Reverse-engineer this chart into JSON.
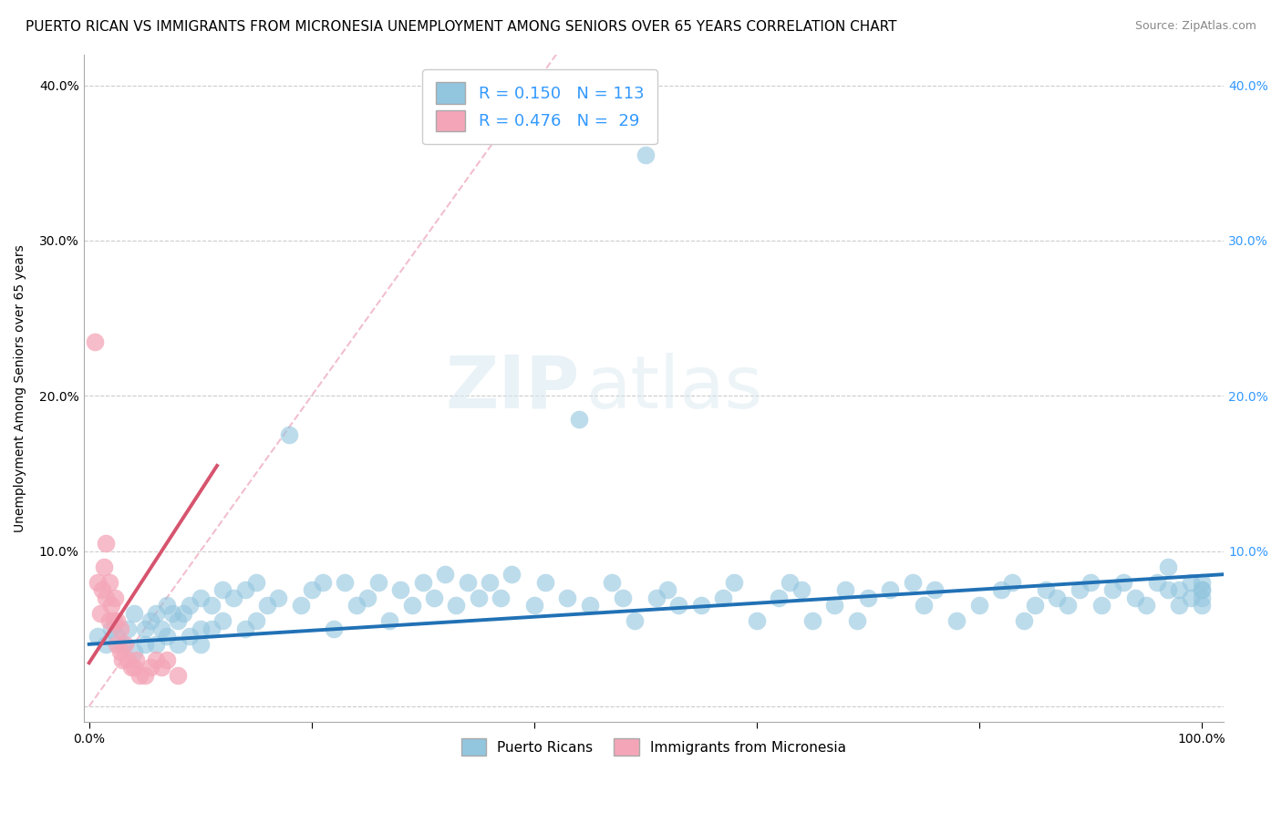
{
  "title": "PUERTO RICAN VS IMMIGRANTS FROM MICRONESIA UNEMPLOYMENT AMONG SENIORS OVER 65 YEARS CORRELATION CHART",
  "source": "Source: ZipAtlas.com",
  "ylabel": "Unemployment Among Seniors over 65 years",
  "xlabel": "",
  "xlim": [
    -0.005,
    1.02
  ],
  "ylim": [
    -0.01,
    0.42
  ],
  "xtick_vals": [
    0.0,
    0.2,
    0.4,
    0.6,
    0.8,
    1.0
  ],
  "xticklabels": [
    "0.0%",
    "",
    "",
    "",
    "",
    "100.0%"
  ],
  "ytick_vals": [
    0.0,
    0.1,
    0.2,
    0.3,
    0.4
  ],
  "yticklabels_left": [
    "",
    "10.0%",
    "20.0%",
    "30.0%",
    "40.0%"
  ],
  "yticklabels_right": [
    "",
    "10.0%",
    "20.0%",
    "30.0%",
    "40.0%"
  ],
  "blue_R": 0.15,
  "blue_N": 113,
  "pink_R": 0.476,
  "pink_N": 29,
  "blue_color": "#92c5de",
  "pink_color": "#f4a6b8",
  "blue_line_color": "#2171b5",
  "pink_line_color": "#d6546e",
  "ref_line_color": "#f0b8c8",
  "legend_blue_label": "Puerto Ricans",
  "legend_pink_label": "Immigrants from Micronesia",
  "watermark_zip": "ZIP",
  "watermark_atlas": "atlas",
  "title_fontsize": 11,
  "axis_label_fontsize": 10,
  "tick_fontsize": 10,
  "blue_trend_x0": 0.0,
  "blue_trend_x1": 1.02,
  "blue_trend_y0": 0.04,
  "blue_trend_y1": 0.085,
  "pink_trend_x0": 0.0,
  "pink_trend_x1": 0.115,
  "pink_trend_y0": 0.028,
  "pink_trend_y1": 0.155,
  "ref_line_x0": 0.0,
  "ref_line_x1": 0.42,
  "ref_line_y0": 0.0,
  "ref_line_y1": 0.42,
  "blue_x": [
    0.008,
    0.015,
    0.02,
    0.025,
    0.03,
    0.035,
    0.04,
    0.04,
    0.05,
    0.05,
    0.055,
    0.06,
    0.06,
    0.065,
    0.07,
    0.07,
    0.075,
    0.08,
    0.08,
    0.085,
    0.09,
    0.09,
    0.1,
    0.1,
    0.1,
    0.11,
    0.11,
    0.12,
    0.12,
    0.13,
    0.14,
    0.14,
    0.15,
    0.15,
    0.16,
    0.17,
    0.18,
    0.19,
    0.2,
    0.21,
    0.22,
    0.23,
    0.24,
    0.25,
    0.26,
    0.27,
    0.28,
    0.29,
    0.3,
    0.31,
    0.32,
    0.33,
    0.34,
    0.35,
    0.36,
    0.37,
    0.38,
    0.4,
    0.41,
    0.43,
    0.44,
    0.45,
    0.47,
    0.48,
    0.49,
    0.5,
    0.51,
    0.52,
    0.53,
    0.55,
    0.57,
    0.58,
    0.6,
    0.62,
    0.63,
    0.64,
    0.65,
    0.67,
    0.68,
    0.69,
    0.7,
    0.72,
    0.74,
    0.75,
    0.76,
    0.78,
    0.8,
    0.82,
    0.83,
    0.84,
    0.85,
    0.86,
    0.87,
    0.88,
    0.89,
    0.9,
    0.91,
    0.92,
    0.93,
    0.94,
    0.95,
    0.96,
    0.97,
    0.97,
    0.98,
    0.98,
    0.99,
    0.99,
    1.0,
    1.0,
    1.0,
    1.0,
    1.0
  ],
  "blue_y": [
    0.045,
    0.04,
    0.05,
    0.045,
    0.04,
    0.05,
    0.06,
    0.035,
    0.05,
    0.04,
    0.055,
    0.06,
    0.04,
    0.05,
    0.065,
    0.045,
    0.06,
    0.055,
    0.04,
    0.06,
    0.065,
    0.045,
    0.07,
    0.05,
    0.04,
    0.065,
    0.05,
    0.075,
    0.055,
    0.07,
    0.075,
    0.05,
    0.08,
    0.055,
    0.065,
    0.07,
    0.175,
    0.065,
    0.075,
    0.08,
    0.05,
    0.08,
    0.065,
    0.07,
    0.08,
    0.055,
    0.075,
    0.065,
    0.08,
    0.07,
    0.085,
    0.065,
    0.08,
    0.07,
    0.08,
    0.07,
    0.085,
    0.065,
    0.08,
    0.07,
    0.185,
    0.065,
    0.08,
    0.07,
    0.055,
    0.355,
    0.07,
    0.075,
    0.065,
    0.065,
    0.07,
    0.08,
    0.055,
    0.07,
    0.08,
    0.075,
    0.055,
    0.065,
    0.075,
    0.055,
    0.07,
    0.075,
    0.08,
    0.065,
    0.075,
    0.055,
    0.065,
    0.075,
    0.08,
    0.055,
    0.065,
    0.075,
    0.07,
    0.065,
    0.075,
    0.08,
    0.065,
    0.075,
    0.08,
    0.07,
    0.065,
    0.08,
    0.075,
    0.09,
    0.075,
    0.065,
    0.08,
    0.07,
    0.075,
    0.065,
    0.08,
    0.07,
    0.075
  ],
  "pink_x": [
    0.005,
    0.008,
    0.01,
    0.012,
    0.013,
    0.015,
    0.015,
    0.018,
    0.018,
    0.02,
    0.022,
    0.023,
    0.025,
    0.025,
    0.028,
    0.028,
    0.03,
    0.032,
    0.035,
    0.038,
    0.04,
    0.042,
    0.045,
    0.05,
    0.055,
    0.06,
    0.065,
    0.07,
    0.08
  ],
  "pink_y": [
    0.235,
    0.08,
    0.06,
    0.075,
    0.09,
    0.105,
    0.07,
    0.08,
    0.055,
    0.065,
    0.055,
    0.07,
    0.055,
    0.04,
    0.05,
    0.035,
    0.03,
    0.04,
    0.03,
    0.025,
    0.025,
    0.03,
    0.02,
    0.02,
    0.025,
    0.03,
    0.025,
    0.03,
    0.02
  ]
}
